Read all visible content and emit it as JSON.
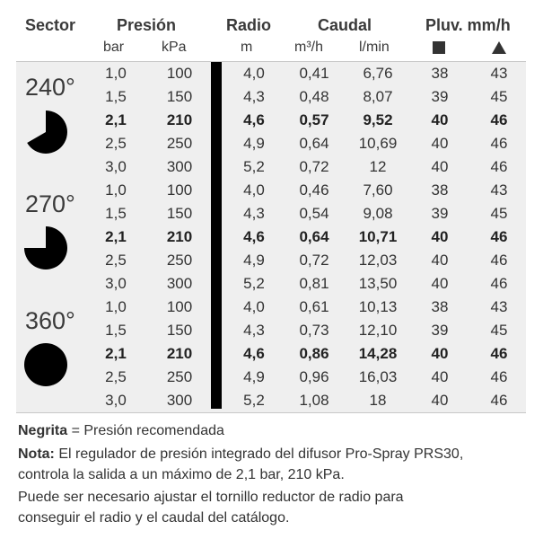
{
  "header": {
    "sector": "Sector",
    "presion": "Presión",
    "radio": "Radio",
    "caudal": "Caudal",
    "pluv": "Pluv. mm/h",
    "units": {
      "bar": "bar",
      "kpa": "kPa",
      "m": "m",
      "m3h": "m³/h",
      "lmin": "l/min",
      "square_icon": "square-icon",
      "triangle_icon": "triangle-icon"
    }
  },
  "groups": [
    {
      "angle": "240°",
      "icon": "sector-240-icon",
      "rows": [
        {
          "bar": "1,0",
          "kpa": "100",
          "m": "4,0",
          "m3h": "0,41",
          "lmin": "6,76",
          "sq": "38",
          "tri": "43",
          "recommended": false
        },
        {
          "bar": "1,5",
          "kpa": "150",
          "m": "4,3",
          "m3h": "0,48",
          "lmin": "8,07",
          "sq": "39",
          "tri": "45",
          "recommended": false
        },
        {
          "bar": "2,1",
          "kpa": "210",
          "m": "4,6",
          "m3h": "0,57",
          "lmin": "9,52",
          "sq": "40",
          "tri": "46",
          "recommended": true
        },
        {
          "bar": "2,5",
          "kpa": "250",
          "m": "4,9",
          "m3h": "0,64",
          "lmin": "10,69",
          "sq": "40",
          "tri": "46",
          "recommended": false
        },
        {
          "bar": "3,0",
          "kpa": "300",
          "m": "5,2",
          "m3h": "0,72",
          "lmin": "12",
          "sq": "40",
          "tri": "46",
          "recommended": false
        }
      ]
    },
    {
      "angle": "270°",
      "icon": "sector-270-icon",
      "rows": [
        {
          "bar": "1,0",
          "kpa": "100",
          "m": "4,0",
          "m3h": "0,46",
          "lmin": "7,60",
          "sq": "38",
          "tri": "43",
          "recommended": false
        },
        {
          "bar": "1,5",
          "kpa": "150",
          "m": "4,3",
          "m3h": "0,54",
          "lmin": "9,08",
          "sq": "39",
          "tri": "45",
          "recommended": false
        },
        {
          "bar": "2,1",
          "kpa": "210",
          "m": "4,6",
          "m3h": "0,64",
          "lmin": "10,71",
          "sq": "40",
          "tri": "46",
          "recommended": true
        },
        {
          "bar": "2,5",
          "kpa": "250",
          "m": "4,9",
          "m3h": "0,72",
          "lmin": "12,03",
          "sq": "40",
          "tri": "46",
          "recommended": false
        },
        {
          "bar": "3,0",
          "kpa": "300",
          "m": "5,2",
          "m3h": "0,81",
          "lmin": "13,50",
          "sq": "40",
          "tri": "46",
          "recommended": false
        }
      ]
    },
    {
      "angle": "360°",
      "icon": "sector-360-icon",
      "rows": [
        {
          "bar": "1,0",
          "kpa": "100",
          "m": "4,0",
          "m3h": "0,61",
          "lmin": "10,13",
          "sq": "38",
          "tri": "43",
          "recommended": false
        },
        {
          "bar": "1,5",
          "kpa": "150",
          "m": "4,3",
          "m3h": "0,73",
          "lmin": "12,10",
          "sq": "39",
          "tri": "45",
          "recommended": false
        },
        {
          "bar": "2,1",
          "kpa": "210",
          "m": "4,6",
          "m3h": "0,86",
          "lmin": "14,28",
          "sq": "40",
          "tri": "46",
          "recommended": true
        },
        {
          "bar": "2,5",
          "kpa": "250",
          "m": "4,9",
          "m3h": "0,96",
          "lmin": "16,03",
          "sq": "40",
          "tri": "46",
          "recommended": false
        },
        {
          "bar": "3,0",
          "kpa": "300",
          "m": "5,2",
          "m3h": "1,08",
          "lmin": "18",
          "sq": "40",
          "tri": "46",
          "recommended": false
        }
      ]
    }
  ],
  "notes": {
    "legend_bold": "Negrita",
    "legend_rest": " = Presión recomendada",
    "nota_label": "Nota:",
    "nota_line1": " El regulador de presión integrado del difusor Pro-Spray PRS30,",
    "nota_line2": "controla la salida a un máximo de 2,1 bar, 210 kPa.",
    "line3": "Puede ser necesario ajustar el tornillo reductor de radio para",
    "line4": "conseguir el radio y el caudal del catálogo."
  }
}
